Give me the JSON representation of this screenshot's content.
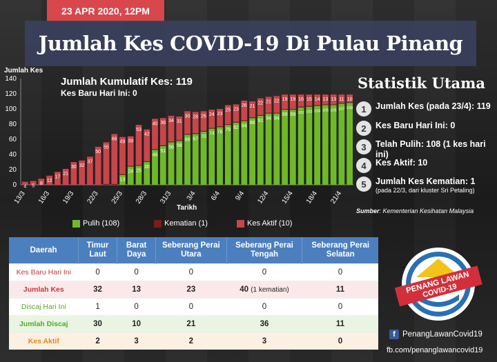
{
  "header": {
    "date": "23 APR 2020, 12PM",
    "title": "Jumlah Kes COVID-19 Di Pulau Pinang"
  },
  "summary": {
    "cumulative": "Jumlah Kumulatif Kes: 119",
    "new_today": "Kes Baru Hari Ini: 0"
  },
  "colors": {
    "recovered": "#6fb929",
    "deaths": "#7a1c1c",
    "active": "#c9454a",
    "table_header": "#4c7fbe"
  },
  "chart_data": {
    "type": "bar",
    "stacked": true,
    "ylabel": "Jumlah Kes",
    "xlabel": "Tarikh",
    "ylim": [
      0,
      140
    ],
    "yticks": [
      0,
      20,
      40,
      60,
      80,
      100,
      120,
      140
    ],
    "categories": [
      "13/3",
      "14/3",
      "15/3",
      "16/3",
      "17/3",
      "18/3",
      "19/3",
      "20/3",
      "21/3",
      "22/3",
      "23/3",
      "24/3",
      "25/3",
      "26/3",
      "27/3",
      "28/3",
      "29/3",
      "30/3",
      "31/3",
      "1/4",
      "2/4",
      "3/4",
      "4/4",
      "5/4",
      "6/4",
      "7/4",
      "8/4",
      "9/4",
      "10/4",
      "11/4",
      "12/4",
      "13/4",
      "14/4",
      "15/4",
      "16/4",
      "17/4",
      "18/4",
      "19/4",
      "20/4",
      "21/4",
      "22/4"
    ],
    "x_tick_labels": [
      "13/3",
      "16/3",
      "19/3",
      "22/3",
      "25/3",
      "28/3",
      "31/3",
      "3/4",
      "6/4",
      "9/4",
      "12/4",
      "15/4",
      "18/4",
      "21/4"
    ],
    "series": [
      {
        "name": "Pulih (108)",
        "values": [
          0,
          0,
          0,
          0,
          0,
          0,
          0,
          0,
          0,
          0,
          0,
          0,
          13,
          24,
          25,
          30,
          46,
          51,
          56,
          58,
          66,
          67,
          70,
          74,
          76,
          79,
          82,
          84,
          88,
          91,
          94,
          94,
          99,
          99,
          102,
          103,
          104,
          105,
          105,
          107,
          108
        ]
      },
      {
        "name": "Kematian (1)",
        "values": [
          0,
          0,
          0,
          0,
          0,
          0,
          0,
          0,
          0,
          0,
          1,
          1,
          1,
          1,
          1,
          1,
          1,
          1,
          1,
          1,
          1,
          1,
          1,
          1,
          1,
          1,
          1,
          1,
          1,
          1,
          1,
          1,
          1,
          1,
          1,
          1,
          1,
          1,
          1,
          1,
          1
        ]
      },
      {
        "name": "Kes Aktif (10)",
        "values": [
          4,
          5,
          8,
          12,
          17,
          21,
          30,
          32,
          37,
          50,
          55,
          66,
          49,
          39,
          53,
          42,
          40,
          36,
          34,
          31,
          30,
          28,
          26,
          24,
          23,
          25,
          23,
          26,
          21,
          22,
          21,
          22,
          19,
          19,
          16,
          15,
          14,
          13,
          13,
          11,
          10
        ]
      }
    ],
    "legend": "bottom"
  },
  "legend": {
    "recovered": "Pulih (108)",
    "deaths": "Kematian (1)",
    "active": "Kes Aktif (10)"
  },
  "stats": {
    "title": "Statistik Utama",
    "items": [
      {
        "num": "1",
        "text": "Jumlah Kes (pada 23/4): 119",
        "sub": ""
      },
      {
        "num": "2",
        "text": "Kes Baru Hari Ini: 0",
        "sub": ""
      },
      {
        "num": "3",
        "text": "Telah Pulih: 108 (1 kes hari ini)",
        "sub": ""
      },
      {
        "num": "4",
        "text": "Kes Aktif: 10",
        "sub": ""
      },
      {
        "num": "5",
        "text": "Jumlah Kes Kematian: 1",
        "sub": "(pada 22/3, dari kluster Sri Petaling)"
      }
    ],
    "source_label": "Sumber",
    "source": ": Kementerian Kesihatan Malaysia"
  },
  "table": {
    "headers": [
      "Daerah",
      "Timur Laut",
      "Barat Daya",
      "Seberang Perai Utara",
      "Seberang Perai Tengah",
      "Seberang Perai Selatan"
    ],
    "rows": [
      {
        "label": "Kes Baru Hari Ini",
        "cells": [
          "0",
          "0",
          "0",
          "0",
          "0"
        ]
      },
      {
        "label": "Jumlah Kes",
        "cells": [
          "32",
          "13",
          "23",
          "40",
          "11"
        ],
        "note": "(1 kematian)"
      },
      {
        "label": "Discaj Hari Ini",
        "cells": [
          "1",
          "0",
          "0",
          "0",
          "0"
        ]
      },
      {
        "label": "Jumlah Discaj",
        "cells": [
          "30",
          "10",
          "21",
          "36",
          "11"
        ]
      },
      {
        "label": "Kes Aktif",
        "cells": [
          "2",
          "3",
          "2",
          "3",
          "0"
        ]
      }
    ]
  },
  "badge": {
    "line1": "PENANG LAWAN",
    "line2": "COVID-19"
  },
  "social": {
    "facebook": "PenangLawanCovid19",
    "url": "fb.com/penanglawancovid19",
    "icon": "facebook-icon"
  }
}
